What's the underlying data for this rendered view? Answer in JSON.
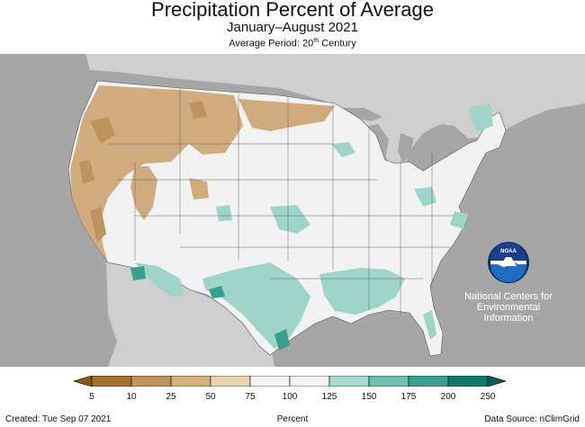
{
  "header": {
    "title": "Precipitation Percent of Average",
    "subtitle": "January–August 2021",
    "period_prefix": "Average Period: 20",
    "period_sup": "th",
    "period_suffix": " Century"
  },
  "logo": {
    "text": "NOAA",
    "label_lines": [
      "National Centers for",
      "Environmental",
      "Information"
    ]
  },
  "legend": {
    "ticks": [
      "5",
      "10",
      "25",
      "50",
      "75",
      "100",
      "125",
      "150",
      "175",
      "200",
      "250"
    ],
    "colors": [
      "#8c5a14",
      "#a4722c",
      "#bf935d",
      "#d4b27f",
      "#e7d3ad",
      "#f2f2f2",
      "#f2f2f2",
      "#a8d9cf",
      "#6fbfb1",
      "#3a9f90",
      "#127a6a",
      "#0b5e52"
    ]
  },
  "footer": {
    "created": "Created: Tue Sep 07 2021",
    "units": "Percent",
    "source": "Data Source: nClimGrid"
  },
  "colors": {
    "land_outside": "#cfcfcf",
    "ocean": "#a6a6a6",
    "neutral": "#f2f2f2",
    "dry": "#cfa877",
    "wet": "#9fd4c8",
    "very_wet": "#3a9f90"
  }
}
